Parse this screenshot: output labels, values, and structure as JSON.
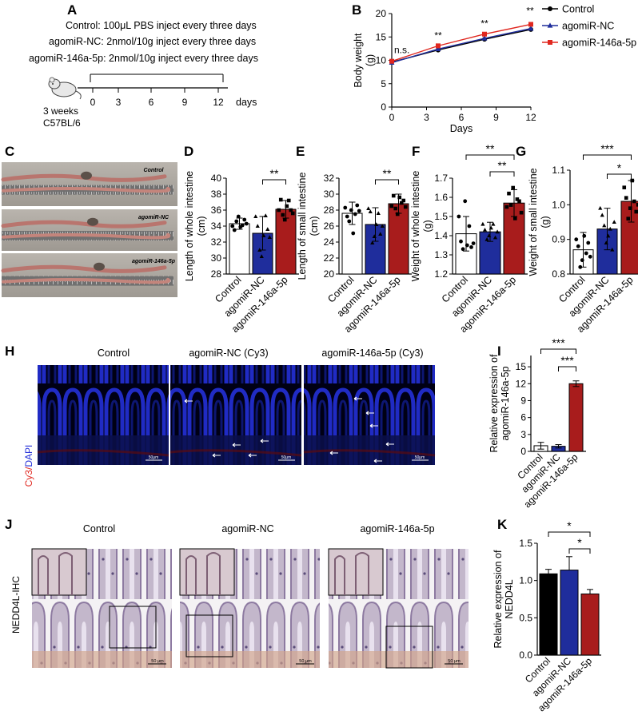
{
  "panel_letters": {
    "a": "A",
    "b": "B",
    "c": "C",
    "d": "D",
    "e": "E",
    "f": "F",
    "g": "G",
    "h": "H",
    "i": "I",
    "j": "J",
    "k": "K"
  },
  "treatment": {
    "lines": [
      "Control: 100μL PBS inject every three days",
      "agomiR-NC: 2nmol/10g inject every three days",
      "agomiR-146a-5p: 2nmol/10g inject every three days"
    ],
    "ticks": [
      "0",
      "3",
      "6",
      "9",
      "12"
    ],
    "unit": "days",
    "mouse_age": "3 weeks",
    "mouse_strain": "C57BL/6"
  },
  "photo_labels": [
    "Control",
    "agomiR-NC",
    "agomiR-146a-5p"
  ],
  "cy3": {
    "titles": [
      "Control",
      "agomiR-NC (Cy3)",
      "agomiR-146a-5p (Cy3)"
    ],
    "stain_cy3": "Cy3",
    "stain_sep": "/",
    "stain_dapi": "DAPI",
    "scale": "50μm"
  },
  "ihc": {
    "titles": [
      "Control",
      "agomiR-NC",
      "agomiR-146a-5p"
    ],
    "stain": "NEDD4L-IHC",
    "scale": "50 μm"
  },
  "colors": {
    "control": "#000000",
    "nc": "#1f2d9c",
    "mir": "#a81c1c",
    "redline": "#e0271f"
  },
  "chart_data": [
    {
      "panel": "B",
      "type": "line",
      "x": [
        0,
        4,
        8,
        12
      ],
      "xlabel": "Days",
      "ylabel": "Body weight\n(g)",
      "xlim": [
        0,
        12
      ],
      "ylim": [
        0,
        20
      ],
      "xticks": [
        0,
        3,
        6,
        9,
        12
      ],
      "yticks": [
        0,
        5,
        10,
        15,
        20
      ],
      "series": [
        {
          "name": "Control",
          "values": [
            9.6,
            12.2,
            14.5,
            16.6
          ],
          "color": "#000000",
          "marker": "circle"
        },
        {
          "name": "agomiR-NC",
          "values": [
            9.5,
            12.4,
            14.7,
            16.8
          ],
          "color": "#1f2d9c",
          "marker": "triangle"
        },
        {
          "name": "agomiR-146a-5p",
          "values": [
            9.8,
            13.1,
            15.6,
            17.7
          ],
          "color": "#e0271f",
          "marker": "square"
        }
      ],
      "annotations": [
        {
          "x": 0,
          "text": "n.s."
        },
        {
          "x": 4,
          "text": "**"
        },
        {
          "x": 8,
          "text": "**"
        },
        {
          "x": 12,
          "text": "**"
        }
      ],
      "legend": "right"
    },
    {
      "panel": "D",
      "type": "bar",
      "categories": [
        "Control",
        "agomiR-NC",
        "agomiR-146a-5p"
      ],
      "values": [
        34.3,
        33.1,
        36.1
      ],
      "errors": [
        0.7,
        2.1,
        1.1
      ],
      "ylabel": "Length of whole intestine\n(cm)",
      "ylim": [
        28,
        40
      ],
      "yticks": [
        28,
        30,
        32,
        34,
        36,
        38,
        40
      ],
      "points": [
        [
          34.0,
          33.5,
          34.6,
          35.2,
          33.9,
          34.1,
          34.8,
          34.3
        ],
        [
          35.2,
          34.0,
          31.0,
          30.2,
          32.8,
          35.3,
          33.6,
          32.6
        ],
        [
          36.0,
          37.3,
          35.4,
          34.8,
          36.5,
          37.2,
          36.0,
          35.6
        ]
      ],
      "sig": [
        {
          "from": 1,
          "to": 2,
          "text": "**"
        }
      ]
    },
    {
      "panel": "E",
      "type": "bar",
      "categories": [
        "Control",
        "agomiR-NC",
        "agomiR-146a-5p"
      ],
      "values": [
        27.6,
        26.2,
        28.8
      ],
      "errors": [
        1.4,
        2.1,
        1.2
      ],
      "ylabel": "Length of small intestine\n(cm)",
      "ylim": [
        20,
        32
      ],
      "yticks": [
        20,
        22,
        24,
        26,
        28,
        30,
        32
      ],
      "points": [
        [
          28.3,
          27.2,
          26.6,
          28.0,
          25.1,
          27.5,
          28.6,
          27.9
        ],
        [
          28.2,
          27.8,
          23.9,
          24.7,
          26.2,
          27.6,
          25.0,
          26.0
        ],
        [
          28.5,
          29.8,
          28.2,
          27.5,
          29.6,
          28.9,
          29.2,
          28.4
        ]
      ],
      "sig": [
        {
          "from": 1,
          "to": 2,
          "text": "**"
        }
      ]
    },
    {
      "panel": "F",
      "type": "bar",
      "categories": [
        "Control",
        "agomiR-NC",
        "agomiR-146a-5p"
      ],
      "values": [
        1.41,
        1.42,
        1.57
      ],
      "errors": [
        0.09,
        0.05,
        0.07
      ],
      "ylabel": "Weight of whole intestine\n(g)",
      "ylim": [
        1.2,
        1.7
      ],
      "yticks": [
        1.2,
        1.3,
        1.4,
        1.5,
        1.6,
        1.7
      ],
      "points": [
        [
          1.5,
          1.37,
          1.33,
          1.58,
          1.35,
          1.45,
          1.34,
          1.36
        ],
        [
          1.46,
          1.43,
          1.38,
          1.4,
          1.44,
          1.46,
          1.39,
          1.42
        ],
        [
          1.55,
          1.62,
          1.56,
          1.65,
          1.49,
          1.59,
          1.58,
          1.52
        ]
      ],
      "sig": [
        {
          "from": 1,
          "to": 2,
          "text": "**"
        },
        {
          "from": 0,
          "to": 2,
          "text": "**"
        }
      ]
    },
    {
      "panel": "G",
      "type": "bar",
      "categories": [
        "Control",
        "agomiR-NC",
        "agomiR-146a-5p"
      ],
      "values": [
        0.87,
        0.93,
        1.01
      ],
      "errors": [
        0.05,
        0.06,
        0.06
      ],
      "ylabel": "Weight of small intestine\n(g)",
      "ylim": [
        0.8,
        1.1
      ],
      "yticks": [
        0.8,
        0.9,
        1.0,
        1.1
      ],
      "points": [
        [
          0.9,
          0.88,
          0.82,
          0.84,
          0.91,
          0.86,
          0.89,
          0.85
        ],
        [
          0.99,
          0.97,
          0.94,
          0.89,
          0.91,
          0.93,
          0.87,
          0.95
        ],
        [
          1.05,
          1.02,
          0.96,
          0.99,
          1.07,
          1.01,
          0.98,
          1.0
        ]
      ],
      "sig": [
        {
          "from": 1,
          "to": 2,
          "text": "*"
        },
        {
          "from": 0,
          "to": 2,
          "text": "***"
        }
      ]
    },
    {
      "panel": "I",
      "type": "bar",
      "categories": [
        "Control",
        "agomiR-NC",
        "agomiR-146a-5p"
      ],
      "values": [
        1.0,
        0.9,
        12.0
      ],
      "errors": [
        0.6,
        0.3,
        0.5
      ],
      "ylabel": "Relative expression of\nagomiR-146a-5p",
      "ylim": [
        0,
        17
      ],
      "yticks": [
        0,
        3,
        6,
        9,
        12,
        15
      ],
      "sig": [
        {
          "from": 1,
          "to": 2,
          "text": "***"
        },
        {
          "from": 0,
          "to": 2,
          "text": "***"
        }
      ]
    },
    {
      "panel": "K",
      "type": "bar",
      "categories": [
        "Control",
        "agomiR-NC",
        "agomiR-146a-5p"
      ],
      "values": [
        1.09,
        1.14,
        0.82
      ],
      "errors": [
        0.06,
        0.18,
        0.06
      ],
      "ylabel": "Relative expression of\nNEDD4L",
      "ylim": [
        0,
        1.5
      ],
      "yticks": [
        0.0,
        0.5,
        1.0,
        1.5
      ],
      "sig": [
        {
          "from": 1,
          "to": 2,
          "text": "*"
        },
        {
          "from": 0,
          "to": 2,
          "text": "*"
        }
      ]
    }
  ]
}
